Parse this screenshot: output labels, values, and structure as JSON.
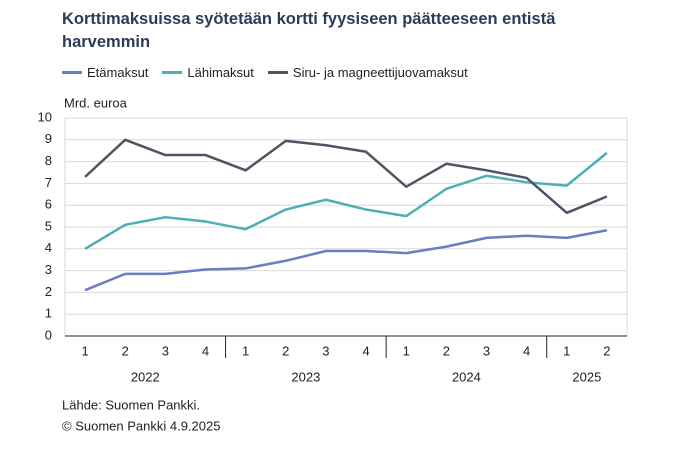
{
  "chart_data": {
    "type": "line",
    "title": "Korttimaksuissa syötetään kortti fyysiseen päätteeseen entistä harvemmin",
    "ylabel": "Mrd. euroa",
    "year_groups": [
      {
        "label": "2022",
        "categories": [
          "1",
          "2",
          "3",
          "4"
        ]
      },
      {
        "label": "2023",
        "categories": [
          "1",
          "2",
          "3",
          "4"
        ]
      },
      {
        "label": "2024",
        "categories": [
          "1",
          "2",
          "3",
          "4"
        ]
      },
      {
        "label": "2025",
        "categories": [
          "1",
          "2"
        ]
      }
    ],
    "series": [
      {
        "name": "Etämaksut",
        "color": "#6a7dbf",
        "values": [
          2.1,
          2.85,
          2.85,
          3.05,
          3.1,
          3.45,
          3.9,
          3.9,
          3.8,
          4.1,
          4.5,
          4.6,
          4.5,
          4.85
        ]
      },
      {
        "name": "Lähimaksut",
        "color": "#4bb0b6",
        "values": [
          4.0,
          5.1,
          5.45,
          5.25,
          4.9,
          5.8,
          6.25,
          5.8,
          5.5,
          6.75,
          7.35,
          7.05,
          6.9,
          8.4
        ]
      },
      {
        "name": "Siru- ja magneettijuovamaksut",
        "color": "#4b5563",
        "values": [
          7.3,
          9.0,
          8.3,
          8.3,
          7.6,
          8.95,
          8.75,
          8.45,
          6.85,
          7.9,
          7.6,
          7.25,
          5.65,
          6.4
        ]
      }
    ],
    "ylim": [
      0,
      10
    ],
    "yticks": [
      0,
      1,
      2,
      3,
      4,
      5,
      6,
      7,
      8,
      9,
      10
    ],
    "grid": true,
    "notes": [
      "Lähde: Suomen Pankki.",
      "© Suomen Pankki 4.9.2025"
    ]
  }
}
